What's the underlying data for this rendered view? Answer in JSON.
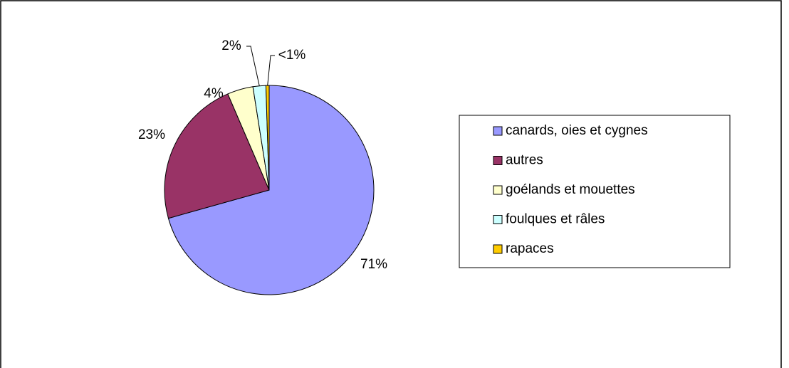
{
  "chart_data": {
    "type": "pie",
    "categories": [
      "canards, oies et cygnes",
      "autres",
      "goélands et mouettes",
      "foulques et râles",
      "rapaces"
    ],
    "values": [
      71,
      23,
      4,
      2,
      0.5
    ],
    "value_labels": [
      "71%",
      "23%",
      "4%",
      "2%",
      "<1%"
    ],
    "colors": [
      "#9999ff",
      "#993366",
      "#ffffcc",
      "#ccffff",
      "#ffcc00"
    ],
    "legend": "right"
  }
}
